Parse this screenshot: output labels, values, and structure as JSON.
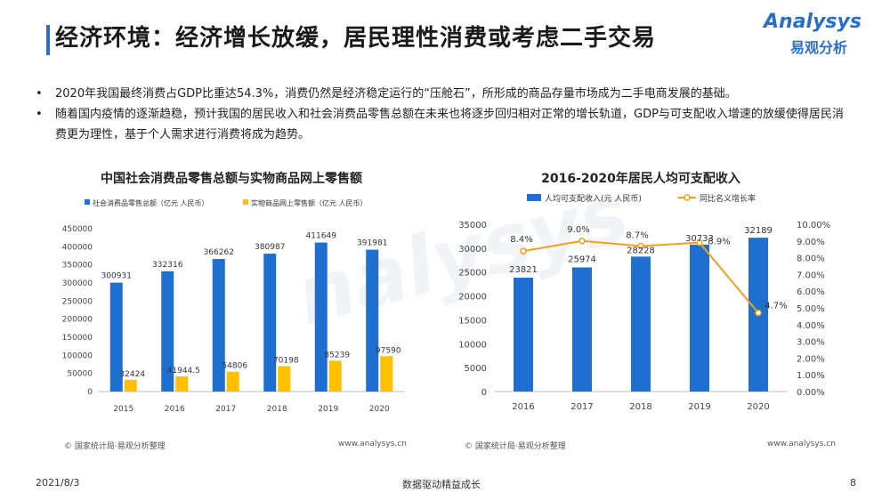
{
  "header": {
    "title": "经济环境：经济增长放缓，居民理性消费或考虑二手交易",
    "logo_en": "Analysys",
    "logo_cn": "易观分析"
  },
  "bullets": [
    "2020年我国最终消费占GDP比重达54.3%，消费仍然是经济稳定运行的“压舱石”，所形成的商品存量市场成为二手电商发展的基础。",
    "随着国内疫情的逐渐趋稳，预计我国的居民收入和社会消费品零售总额在未来也将逐步回归相对正常的增长轨道，GDP与可支配收入增速的放缓使得居民消费更为理性，基于个人需求进行消费将成为趋势。"
  ],
  "footer": {
    "date": "2021/8/3",
    "slogan": "数据驱动精益成长",
    "page": "8"
  },
  "colors": {
    "blue": "#1f6fd1",
    "yellow": "#ffc000",
    "orange": "#f0a020",
    "title_bar": "#2a6ec7"
  },
  "chart_data": [
    {
      "type": "bar",
      "title": "中国社会消费品零售总额与实物商品网上零售额",
      "categories": [
        "2015",
        "2016",
        "2017",
        "2018",
        "2019",
        "2020"
      ],
      "series": [
        {
          "name": "社会消费品零售总额（亿元 人民币）",
          "values": [
            300931,
            332316,
            366262,
            380987,
            411649,
            391981
          ],
          "labels": [
            "300931",
            "332316",
            "366262",
            "380987",
            "411649",
            "391981"
          ]
        },
        {
          "name": "实物商品网上零售额（亿元 人民币）",
          "values": [
            32424,
            41944.5,
            54806,
            70198,
            85239,
            97590
          ],
          "labels": [
            "32424",
            "41944.5",
            "54806",
            "70198",
            "85239",
            "97590"
          ]
        }
      ],
      "ylim": [
        0,
        450000
      ],
      "yticks": [
        "0",
        "50000",
        "100000",
        "150000",
        "200000",
        "250000",
        "300000",
        "350000",
        "400000",
        "450000"
      ],
      "legend": "top-left",
      "source": "© 国家统计局·易观分析整理",
      "site": "www.analysys.cn"
    },
    {
      "type": "bar+line",
      "title": "2016-2020年居民人均可支配收入",
      "categories": [
        "2016",
        "2017",
        "2018",
        "2019",
        "2020"
      ],
      "series": [
        {
          "name": "人均可支配收入(元 人民币)",
          "type": "bar",
          "values": [
            23821,
            25974,
            28228,
            30733,
            32189
          ],
          "labels": [
            "23821",
            "25974",
            "28228",
            "30733",
            "32189"
          ]
        },
        {
          "name": "同比名义增长率",
          "type": "line",
          "values": [
            8.4,
            9.0,
            8.7,
            8.9,
            4.7
          ],
          "labels": [
            "8.4%",
            "9.0%",
            "8.7%",
            "8.9%",
            "4.7%"
          ]
        }
      ],
      "ylim": [
        0,
        35000
      ],
      "yticks": [
        "0",
        "5000",
        "10000",
        "15000",
        "20000",
        "25000",
        "30000",
        "35000"
      ],
      "y2lim": [
        0,
        10
      ],
      "y2ticks": [
        "0.00%",
        "1.00%",
        "2.00%",
        "3.00%",
        "4.00%",
        "5.00%",
        "6.00%",
        "7.00%",
        "8.00%",
        "9.00%",
        "10.00%"
      ],
      "legend": "top-center",
      "source": "© 国家统计局·易观分析整理",
      "site": "www.analysys.cn"
    }
  ]
}
